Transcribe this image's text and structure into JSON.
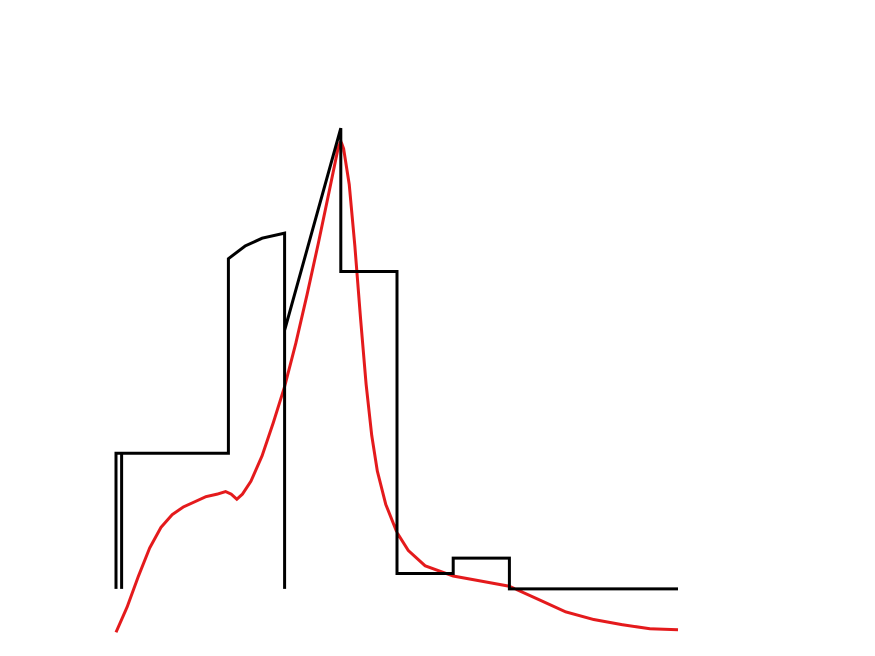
{
  "chart_data": {
    "type": "line",
    "title": "",
    "xlabel": "",
    "ylabel": "",
    "grid": false,
    "legend": "none",
    "xlim": [
      0,
      100
    ],
    "ylim": [
      -10,
      100
    ],
    "series": [
      {
        "key": "piecewise",
        "color": "#000000",
        "points": [
          [
            0,
            0
          ],
          [
            0,
            26.5
          ],
          [
            1,
            26.5
          ],
          [
            1,
            0
          ],
          [
            1,
            26.5
          ],
          [
            20,
            26.5
          ],
          [
            20,
            64.5
          ],
          [
            23,
            67
          ],
          [
            26,
            68.5
          ],
          [
            30,
            69.5
          ],
          [
            30,
            0
          ],
          [
            30,
            50.5
          ],
          [
            40,
            90
          ],
          [
            40,
            62
          ],
          [
            50,
            62
          ],
          [
            50,
            3
          ],
          [
            60,
            3
          ],
          [
            60,
            6
          ],
          [
            70,
            6
          ],
          [
            70,
            0
          ],
          [
            100,
            0
          ]
        ]
      },
      {
        "key": "smooth",
        "color": "#e41a1c",
        "points": [
          [
            0,
            -8.5
          ],
          [
            2,
            -3.5
          ],
          [
            4,
            2.5
          ],
          [
            6,
            8
          ],
          [
            8,
            12
          ],
          [
            10,
            14.5
          ],
          [
            12,
            16
          ],
          [
            14,
            17
          ],
          [
            16,
            18
          ],
          [
            18,
            18.5
          ],
          [
            19.5,
            19
          ],
          [
            20.5,
            18.5
          ],
          [
            21.5,
            17.5
          ],
          [
            22.5,
            18.5
          ],
          [
            24,
            21
          ],
          [
            26,
            26
          ],
          [
            28,
            32.5
          ],
          [
            30,
            39.5
          ],
          [
            32,
            48
          ],
          [
            34,
            57.5
          ],
          [
            36,
            67.5
          ],
          [
            38,
            78
          ],
          [
            39.5,
            86
          ],
          [
            40,
            87.5
          ],
          [
            40.5,
            86
          ],
          [
            41.5,
            79
          ],
          [
            42.5,
            67
          ],
          [
            43.5,
            53
          ],
          [
            44.5,
            40
          ],
          [
            45.5,
            30
          ],
          [
            46.5,
            23
          ],
          [
            48,
            16.5
          ],
          [
            50,
            11
          ],
          [
            52,
            7.5
          ],
          [
            55,
            4.5
          ],
          [
            60,
            2.5
          ],
          [
            65,
            1.5
          ],
          [
            70,
            0.5
          ],
          [
            75,
            -2
          ],
          [
            80,
            -4.5
          ],
          [
            85,
            -6
          ],
          [
            90,
            -7
          ],
          [
            95,
            -7.8
          ],
          [
            100,
            -8
          ]
        ]
      }
    ]
  }
}
